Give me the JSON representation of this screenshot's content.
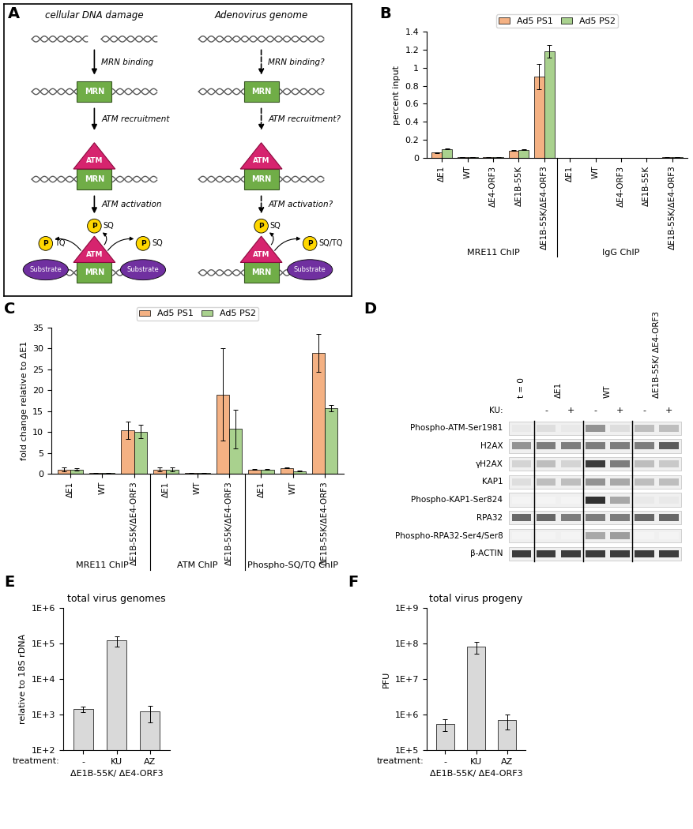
{
  "panel_labels": [
    "A",
    "B",
    "C",
    "D",
    "E",
    "F"
  ],
  "diagram": {
    "components": {
      "mrn": "MRN",
      "atm": "ATM",
      "substrate": "Substrate",
      "phospho": "P"
    },
    "columns": [
      {
        "header": "cellular DNA damage",
        "steps": [
          "MRN binding",
          "ATM recruitment",
          "ATM activation"
        ],
        "sites": [
          "TQ",
          "SQ",
          "SQ"
        ]
      },
      {
        "header": "Adenovirus genome",
        "steps": [
          "MRN binding?",
          "ATM recruitment?",
          "ATM activation?"
        ],
        "sites": [
          "SQ",
          "SQ/TQ"
        ]
      }
    ]
  },
  "blot": {
    "treatment_label": "KU:",
    "groups": [
      {
        "label": "t = 0",
        "treatments": [
          null
        ]
      },
      {
        "label": "ΔE1",
        "treatments": [
          "-",
          "+"
        ]
      },
      {
        "label": "WT",
        "treatments": [
          "-",
          "+"
        ]
      },
      {
        "label": "ΔE1B-55K/ ΔE4-ORF3",
        "treatments": [
          "-",
          "+"
        ]
      }
    ],
    "rows": [
      {
        "name": "Phospho-ATM-Ser1981",
        "intensity": [
          0.1,
          0.15,
          0.1,
          0.5,
          0.15,
          0.3,
          0.3
        ]
      },
      {
        "name": "H2AX",
        "intensity": [
          0.5,
          0.6,
          0.6,
          0.6,
          0.6,
          0.6,
          0.75
        ]
      },
      {
        "name": "γH2AX",
        "intensity": [
          0.2,
          0.3,
          0.2,
          0.9,
          0.6,
          0.3,
          0.25
        ]
      },
      {
        "name": "KAP1",
        "intensity": [
          0.15,
          0.3,
          0.3,
          0.5,
          0.4,
          0.3,
          0.3
        ]
      },
      {
        "name": "Phospho-KAP1-Ser824",
        "intensity": [
          0.05,
          0.05,
          0.05,
          0.95,
          0.4,
          0.1,
          0.1
        ]
      },
      {
        "name": "RPA32",
        "intensity": [
          0.7,
          0.7,
          0.6,
          0.6,
          0.6,
          0.7,
          0.7
        ]
      },
      {
        "name": "Phospho-RPA32-Ser4/Ser8",
        "intensity": [
          0.05,
          0.05,
          0.05,
          0.4,
          0.45,
          0.05,
          0.05
        ]
      },
      {
        "name": "β-ACTIN",
        "intensity": [
          0.9,
          0.9,
          0.9,
          0.9,
          0.9,
          0.9,
          0.9
        ]
      }
    ]
  },
  "chart_data": [
    {
      "type": "bar",
      "ylabel": "percent input",
      "groups": [
        {
          "label": "MRE11 ChIP",
          "categories": [
            "ΔE1",
            "WT",
            "ΔE4-ORF3",
            "ΔE1B-55K",
            "ΔE1B-55K/ΔE4-ORF3"
          ]
        },
        {
          "label": "IgG ChIP",
          "categories": [
            "ΔE1",
            "WT",
            "ΔE4-ORF3",
            "ΔE1B-55K",
            "ΔE1B-55K/ΔE4-ORF3"
          ]
        }
      ],
      "series": [
        {
          "name": "Ad5 PS1",
          "color": "#f4b183",
          "values": [
            0.06,
            0.01,
            0.005,
            0.08,
            0.9,
            0.003,
            0.003,
            0.003,
            0.003,
            0.005
          ],
          "errors": [
            0.005,
            0.002,
            0.001,
            0.005,
            0.14,
            0.001,
            0.001,
            0.001,
            0.001,
            0.001
          ]
        },
        {
          "name": "Ad5 PS2",
          "color": "#a9d18e",
          "values": [
            0.1,
            0.01,
            0.005,
            0.09,
            1.18,
            0.003,
            0.003,
            0.003,
            0.003,
            0.006
          ],
          "errors": [
            0.005,
            0.002,
            0.001,
            0.004,
            0.07,
            0.001,
            0.001,
            0.001,
            0.001,
            0.001
          ]
        }
      ],
      "ylim": [
        0,
        1.4
      ],
      "yticks": [
        0,
        0.2,
        0.4,
        0.6,
        0.8,
        1,
        1.2,
        1.4
      ],
      "legend": "upper center"
    },
    {
      "type": "bar",
      "ylabel": "fold change relative to ΔE1",
      "groups": [
        {
          "label": "MRE11 ChIP",
          "categories": [
            "ΔE1",
            "WT",
            "ΔE1B-55K/ΔE4-ORF3"
          ]
        },
        {
          "label": "ATM ChIP",
          "categories": [
            "ΔE1",
            "WT",
            "ΔE1B-55K/ΔE4-ORF3"
          ]
        },
        {
          "label": "Phospho-SQ/TQ ChIP",
          "categories": [
            "ΔE1",
            "WT",
            "ΔE1B-55K/ΔE4-ORF3"
          ]
        }
      ],
      "series": [
        {
          "name": "Ad5 PS1",
          "color": "#f4b183",
          "values": [
            1,
            0.1,
            10.4,
            1,
            0.1,
            19,
            1,
            1.4,
            29
          ],
          "errors": [
            0.5,
            0.02,
            2,
            0.5,
            0.05,
            11,
            0.1,
            0.1,
            4.5
          ]
        },
        {
          "name": "Ad5 PS2",
          "color": "#a9d18e",
          "values": [
            1,
            0.1,
            10.1,
            1,
            0.1,
            10.7,
            1,
            0.6,
            15.7
          ],
          "errors": [
            0.3,
            0.03,
            1.6,
            0.5,
            0.05,
            4.7,
            0.1,
            0.1,
            0.8
          ]
        }
      ],
      "ylim": [
        0,
        35
      ],
      "yticks": [
        0,
        5,
        10,
        15,
        20,
        25,
        30,
        35
      ],
      "legend": "upper center"
    },
    {
      "type": "bar",
      "title": "total virus genomes",
      "ylabel": "relative to 18S rDNA",
      "xlabel": "treatment:",
      "categories": [
        "-",
        "KU",
        "AZ"
      ],
      "group_label": "ΔE1B-55K/ ΔE4-ORF3",
      "color": "#d9d9d9",
      "values": [
        1400,
        120000,
        1200
      ],
      "errors": [
        250,
        40000,
        600
      ],
      "log": "y",
      "ylim": [
        100,
        1000000
      ],
      "yticks": [
        {
          "value": 100,
          "label": "1E+2"
        },
        {
          "value": 1000,
          "label": "1E+3"
        },
        {
          "value": 10000,
          "label": "1E+4"
        },
        {
          "value": 100000,
          "label": "1E+5"
        },
        {
          "value": 1000000,
          "label": "1E+6"
        }
      ]
    },
    {
      "type": "bar",
      "title": "total virus progeny",
      "ylabel": "PFU",
      "xlabel": "treatment:",
      "categories": [
        "-",
        "KU",
        "AZ"
      ],
      "group_label": "ΔE1B-55K/ ΔE4-ORF3",
      "color": "#d9d9d9",
      "values": [
        550000,
        80000000,
        700000
      ],
      "errors": [
        200000,
        28000000,
        320000
      ],
      "log": "y",
      "ylim": [
        100000,
        1000000000
      ],
      "yticks": [
        {
          "value": 100000,
          "label": "1E+5"
        },
        {
          "value": 1000000,
          "label": "1E+6"
        },
        {
          "value": 10000000,
          "label": "1E+7"
        },
        {
          "value": 100000000,
          "label": "1E+8"
        },
        {
          "value": 1000000000,
          "label": "1E+9"
        }
      ]
    }
  ]
}
